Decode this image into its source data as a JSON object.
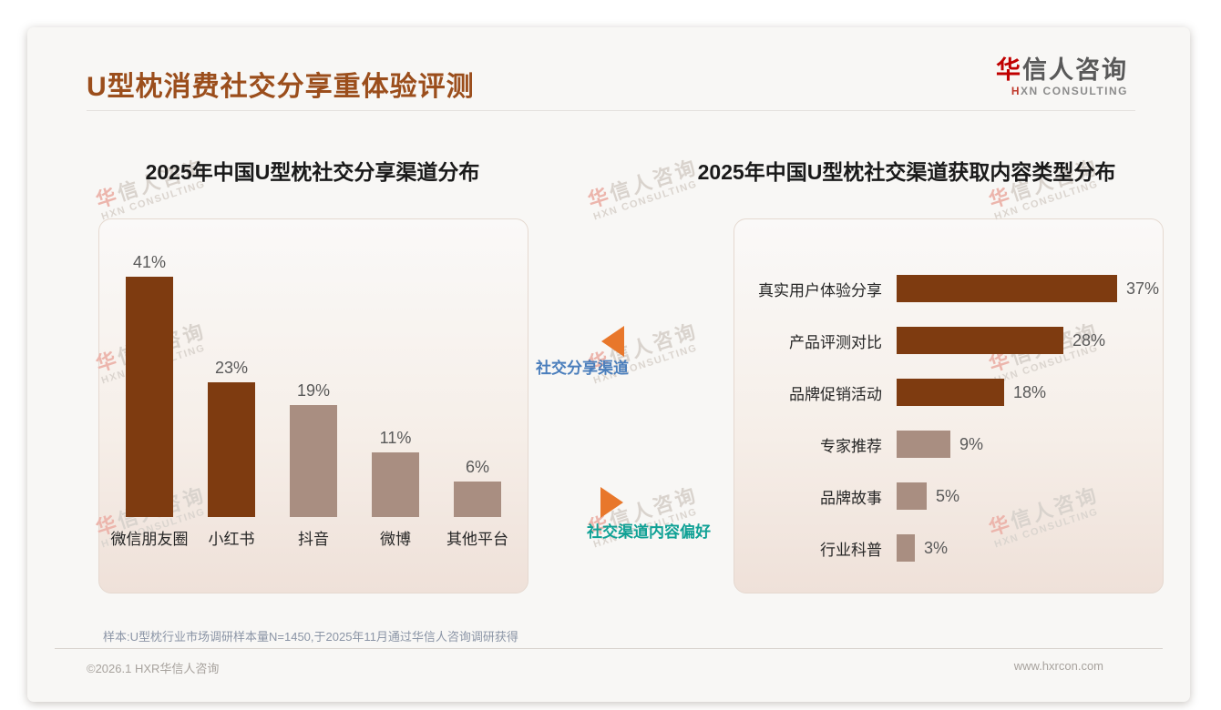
{
  "page": {
    "title": "U型枕消费社交分享重体验评测",
    "logo": {
      "line1_accent": "华",
      "line1_rest": "信人咨询",
      "line2_accent": "H",
      "line2_rest": "XN CONSULTING"
    },
    "watermark": {
      "line1_accent": "华",
      "line1_rest": "信人咨询",
      "line2": "HXN CONSULTING"
    },
    "footnote": "样本:U型枕行业市场调研样本量N=1450,于2025年11月通过华信人咨询调研获得",
    "footer": {
      "left": "©2026.1 HXR华信人咨询",
      "right": "www.hxrcon.com"
    }
  },
  "annotations": {
    "top_label": "社交分享渠道",
    "bottom_label": "社交渠道内容偏好"
  },
  "colors": {
    "title_brown": "#9b4e1c",
    "bar_dark_brown": "#7e3b10",
    "bar_mauve": "#a98e81",
    "annotation_blue": "#4a7ebc",
    "annotation_teal": "#0fa195",
    "arrow_orange": "#e8772b",
    "logo_red": "#c00000"
  },
  "chart_data": [
    {
      "type": "bar",
      "orientation": "vertical",
      "title": "2025年中国U型枕社交分享渠道分布",
      "categories": [
        "微信朋友圈",
        "小红书",
        "抖音",
        "微博",
        "其他平台"
      ],
      "values": [
        41,
        23,
        19,
        11,
        6
      ],
      "unit": "%",
      "value_labels": "above bars",
      "bar_colors": [
        "#7e3b10",
        "#7e3b10",
        "#a98e81",
        "#a98e81",
        "#a98e81"
      ],
      "ylim": [
        0,
        45
      ],
      "grid": false,
      "legend": false
    },
    {
      "type": "bar",
      "orientation": "horizontal",
      "title": "2025年中国U型枕社交渠道获取内容类型分布",
      "categories": [
        "真实用户体验分享",
        "产品评测对比",
        "品牌促销活动",
        "专家推荐",
        "品牌故事",
        "行业科普"
      ],
      "values": [
        37,
        28,
        18,
        9,
        5,
        3
      ],
      "unit": "%",
      "value_labels": "right of bars",
      "bar_colors": [
        "#7e3b10",
        "#7e3b10",
        "#7e3b10",
        "#a98e81",
        "#a98e81",
        "#a98e81"
      ],
      "xlim": [
        0,
        40
      ],
      "grid": false,
      "legend": false
    }
  ]
}
